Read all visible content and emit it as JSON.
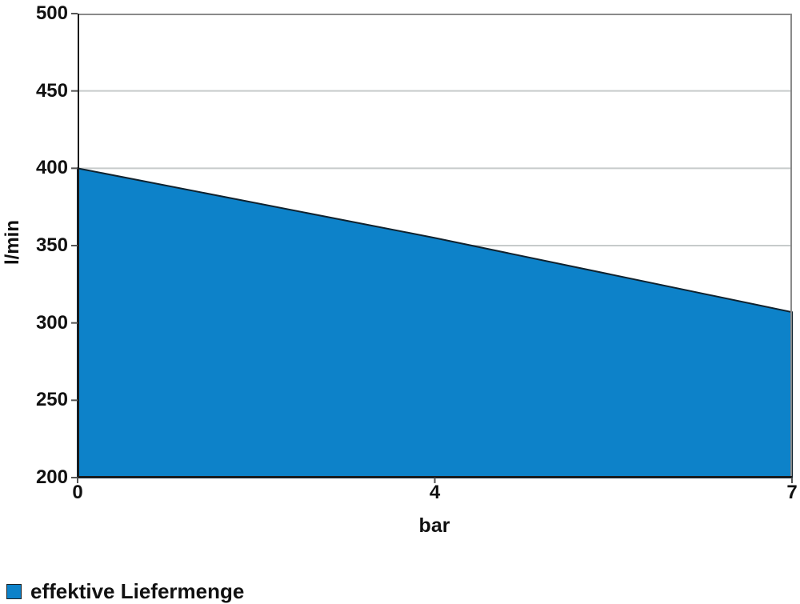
{
  "chart_data": {
    "type": "area",
    "x": [
      0,
      4,
      7
    ],
    "values": [
      400,
      355,
      307
    ],
    "series": [
      {
        "name": "effektive Liefermenge",
        "values": [
          400,
          355,
          307
        ]
      }
    ],
    "title": "",
    "xlabel": "bar",
    "ylabel": "l/min",
    "ylim": [
      200,
      500
    ],
    "y_ticks": [
      500,
      450,
      400,
      350,
      300,
      250,
      200
    ],
    "x_ticks": [
      "0",
      "4",
      "7"
    ],
    "x_axis_type": "category-evenly-spaced",
    "grid": "horizontal",
    "legend_position": "bottom-left",
    "colors": {
      "fill": "#0d82c9",
      "series_outline": "#10222e",
      "gridline": "#c7cbcb",
      "frame": "#8a8a8a",
      "axis": "#1a1a1a",
      "tick": "#555555",
      "text": "#111111",
      "background": "#ffffff"
    }
  },
  "legend": {
    "items": [
      {
        "label": "effektive Liefermenge",
        "swatch_color": "#0d82c9"
      }
    ]
  }
}
